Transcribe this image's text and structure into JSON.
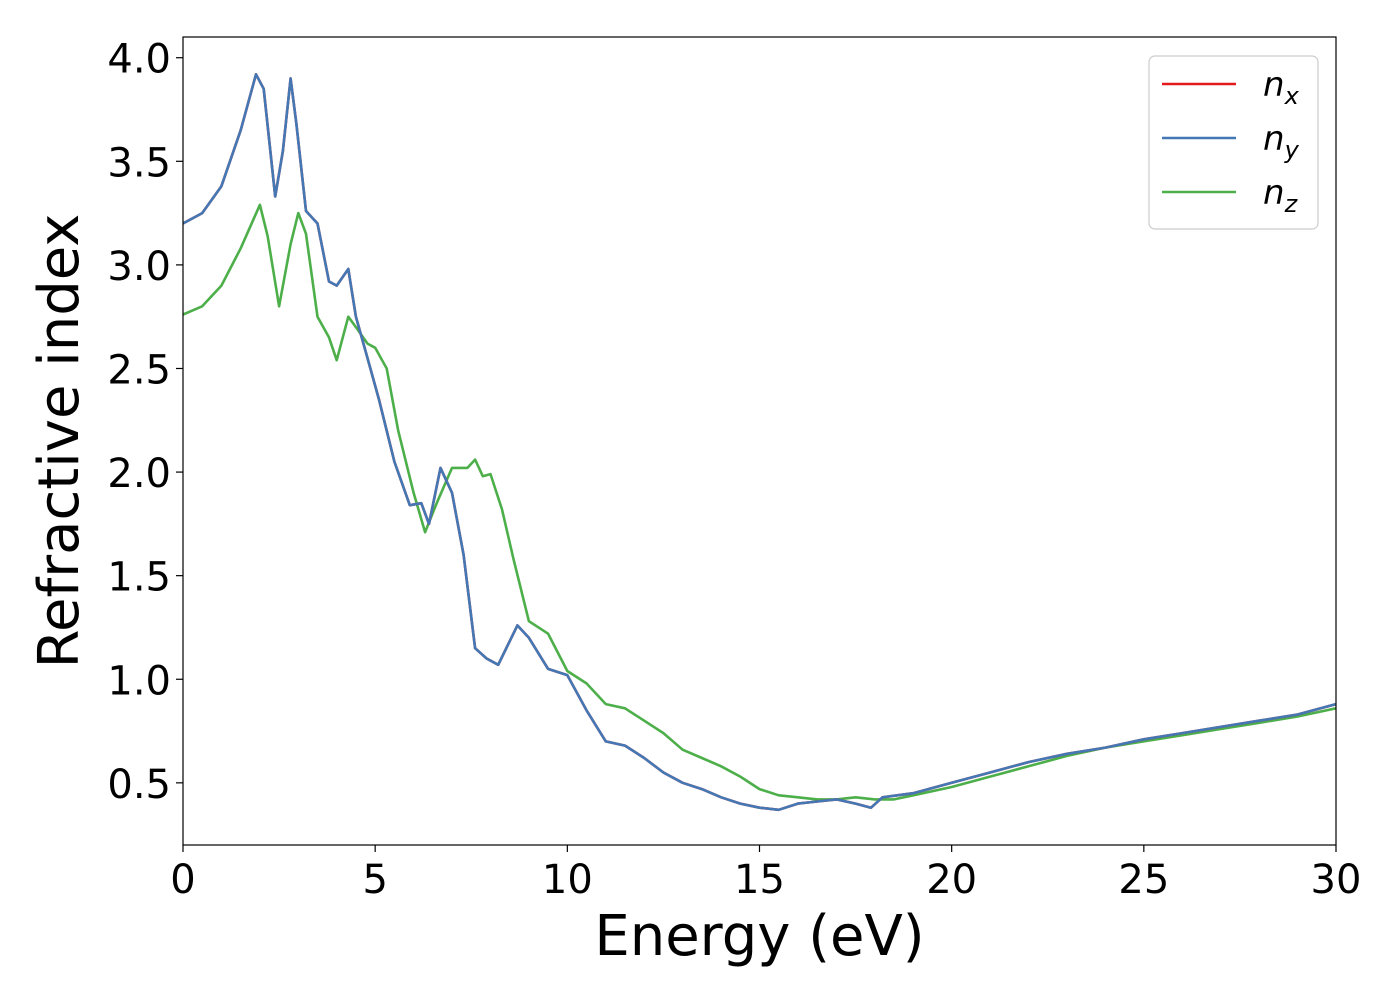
{
  "chart_data": {
    "type": "line",
    "title": "",
    "xlabel": "Energy (eV)",
    "ylabel": "Refractive index",
    "xlim": [
      0,
      30
    ],
    "ylim": [
      0.2,
      4.1
    ],
    "xticks": [
      0,
      5,
      10,
      15,
      20,
      25,
      30
    ],
    "xtick_labels": [
      "0",
      "5",
      "10",
      "15",
      "20",
      "25",
      "30"
    ],
    "yticks": [
      0.5,
      1.0,
      1.5,
      2.0,
      2.5,
      3.0,
      3.5,
      4.0
    ],
    "ytick_labels": [
      "0.5",
      "1.0",
      "1.5",
      "2.0",
      "2.5",
      "3.0",
      "3.5",
      "4.0"
    ],
    "grid": false,
    "legend_position": "top-right",
    "series": [
      {
        "name": "n_x",
        "label_base": "n",
        "label_sub": "x",
        "color": "#e41a1c",
        "x": [
          0,
          0.5,
          1.0,
          1.5,
          1.9,
          2.1,
          2.4,
          2.6,
          2.8,
          2.95,
          3.2,
          3.5,
          3.8,
          4.0,
          4.3,
          4.5,
          4.8,
          5.1,
          5.5,
          5.9,
          6.2,
          6.4,
          6.7,
          7.0,
          7.3,
          7.6,
          7.9,
          8.2,
          8.7,
          9.0,
          9.5,
          10.0,
          10.5,
          11.0,
          11.5,
          12.0,
          12.5,
          13.0,
          13.5,
          14.0,
          14.5,
          15.0,
          15.5,
          16.0,
          16.5,
          17.0,
          17.5,
          17.9,
          18.2,
          19.0,
          20.0,
          21.0,
          22.0,
          23.0,
          24.0,
          25.0,
          26.0,
          27.0,
          28.0,
          29.0,
          30.0
        ],
        "y": [
          3.2,
          3.25,
          3.38,
          3.65,
          3.92,
          3.85,
          3.33,
          3.55,
          3.9,
          3.68,
          3.26,
          3.2,
          2.92,
          2.9,
          2.98,
          2.75,
          2.55,
          2.35,
          2.05,
          1.84,
          1.85,
          1.75,
          2.02,
          1.9,
          1.6,
          1.15,
          1.1,
          1.07,
          1.26,
          1.2,
          1.05,
          1.02,
          0.85,
          0.7,
          0.68,
          0.62,
          0.55,
          0.5,
          0.47,
          0.43,
          0.4,
          0.38,
          0.37,
          0.4,
          0.41,
          0.42,
          0.4,
          0.38,
          0.43,
          0.45,
          0.5,
          0.55,
          0.6,
          0.64,
          0.67,
          0.71,
          0.74,
          0.77,
          0.8,
          0.83,
          0.88
        ]
      },
      {
        "name": "n_y",
        "label_base": "n",
        "label_sub": "y",
        "color": "#4478b4",
        "x": [
          0,
          0.5,
          1.0,
          1.5,
          1.9,
          2.1,
          2.4,
          2.6,
          2.8,
          2.95,
          3.2,
          3.5,
          3.8,
          4.0,
          4.3,
          4.5,
          4.8,
          5.1,
          5.5,
          5.9,
          6.2,
          6.4,
          6.7,
          7.0,
          7.3,
          7.6,
          7.9,
          8.2,
          8.7,
          9.0,
          9.5,
          10.0,
          10.5,
          11.0,
          11.5,
          12.0,
          12.5,
          13.0,
          13.5,
          14.0,
          14.5,
          15.0,
          15.5,
          16.0,
          16.5,
          17.0,
          17.5,
          17.9,
          18.2,
          19.0,
          20.0,
          21.0,
          22.0,
          23.0,
          24.0,
          25.0,
          26.0,
          27.0,
          28.0,
          29.0,
          30.0
        ],
        "y": [
          3.2,
          3.25,
          3.38,
          3.65,
          3.92,
          3.85,
          3.33,
          3.55,
          3.9,
          3.68,
          3.26,
          3.2,
          2.92,
          2.9,
          2.98,
          2.75,
          2.55,
          2.35,
          2.05,
          1.84,
          1.85,
          1.75,
          2.02,
          1.9,
          1.6,
          1.15,
          1.1,
          1.07,
          1.26,
          1.2,
          1.05,
          1.02,
          0.85,
          0.7,
          0.68,
          0.62,
          0.55,
          0.5,
          0.47,
          0.43,
          0.4,
          0.38,
          0.37,
          0.4,
          0.41,
          0.42,
          0.4,
          0.38,
          0.43,
          0.45,
          0.5,
          0.55,
          0.6,
          0.64,
          0.67,
          0.71,
          0.74,
          0.77,
          0.8,
          0.83,
          0.88
        ]
      },
      {
        "name": "n_z",
        "label_base": "n",
        "label_sub": "z",
        "color": "#4daf4a",
        "x": [
          0,
          0.5,
          1.0,
          1.5,
          2.0,
          2.2,
          2.5,
          2.8,
          3.0,
          3.2,
          3.5,
          3.8,
          4.0,
          4.3,
          4.5,
          4.8,
          5.0,
          5.3,
          5.6,
          6.0,
          6.3,
          6.6,
          7.0,
          7.4,
          7.6,
          7.8,
          8.0,
          8.3,
          8.6,
          9.0,
          9.5,
          10.0,
          10.5,
          11.0,
          11.5,
          12.0,
          12.5,
          13.0,
          13.5,
          14.0,
          14.5,
          15.0,
          15.5,
          16.0,
          16.5,
          17.0,
          17.5,
          18.0,
          18.5,
          19.0,
          20.0,
          21.0,
          22.0,
          23.0,
          24.0,
          25.0,
          26.0,
          27.0,
          28.0,
          29.0,
          30.0
        ],
        "y": [
          2.76,
          2.8,
          2.9,
          3.08,
          3.29,
          3.14,
          2.8,
          3.1,
          3.25,
          3.15,
          2.75,
          2.65,
          2.54,
          2.75,
          2.7,
          2.62,
          2.6,
          2.5,
          2.2,
          1.9,
          1.71,
          1.85,
          2.02,
          2.02,
          2.06,
          1.98,
          1.99,
          1.82,
          1.58,
          1.28,
          1.22,
          1.04,
          0.98,
          0.88,
          0.86,
          0.8,
          0.74,
          0.66,
          0.62,
          0.58,
          0.53,
          0.47,
          0.44,
          0.43,
          0.42,
          0.42,
          0.43,
          0.42,
          0.42,
          0.44,
          0.48,
          0.53,
          0.58,
          0.63,
          0.67,
          0.7,
          0.73,
          0.76,
          0.79,
          0.82,
          0.86
        ]
      }
    ]
  }
}
